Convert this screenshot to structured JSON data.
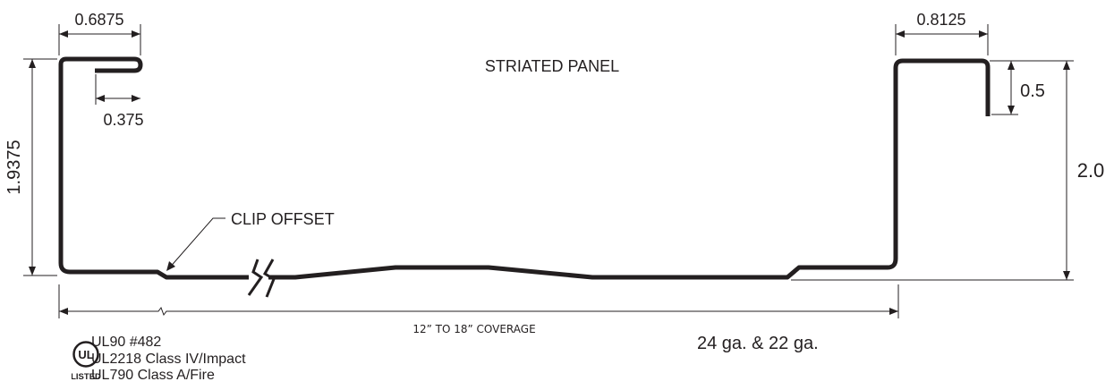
{
  "title": "STRIATED PANEL",
  "dimensions": {
    "left_flange_width": "0.6875",
    "left_hem": "0.375",
    "left_height": "1.9375",
    "right_flange_width": "0.8125",
    "right_drop": "0.5",
    "right_height": "2.0"
  },
  "labels": {
    "clip_offset": "CLIP OFFSET",
    "coverage": "12” TO 18” COVERAGE",
    "gauge": "24 ga. & 22 ga."
  },
  "certification": {
    "mark_text": "UL",
    "listed_text": "LISTED",
    "lines": [
      "UL90 #482",
      "UL2218 Class IV/Impact",
      "UL790 Class A/Fire"
    ]
  }
}
